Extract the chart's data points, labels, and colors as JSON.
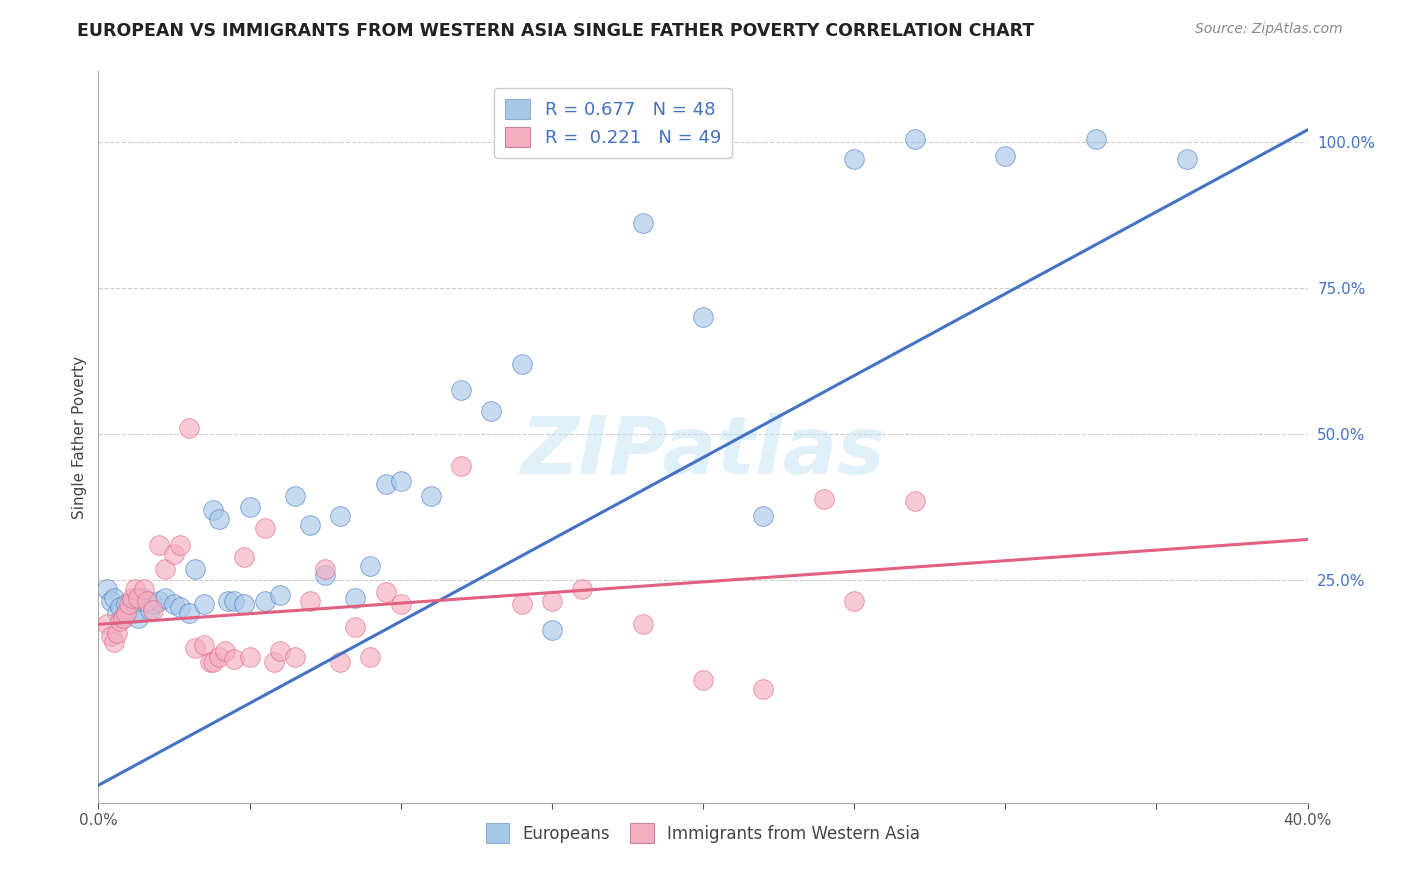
{
  "title": "EUROPEAN VS IMMIGRANTS FROM WESTERN ASIA SINGLE FATHER POVERTY CORRELATION CHART",
  "source": "Source: ZipAtlas.com",
  "ylabel": "Single Father Poverty",
  "right_yticks": [
    "100.0%",
    "75.0%",
    "50.0%",
    "25.0%"
  ],
  "right_ytick_vals": [
    1.0,
    0.75,
    0.5,
    0.25
  ],
  "blue_color": "#a8c8e8",
  "pink_color": "#f4aec0",
  "blue_line_color": "#4472c4",
  "pink_line_color": "#e06080",
  "watermark": "ZIPatlas",
  "xlim": [
    0.0,
    0.4
  ],
  "ylim": [
    -0.13,
    1.12
  ],
  "blue_line_x0": 0.0,
  "blue_line_y0": -0.1,
  "blue_line_x1": 0.4,
  "blue_line_y1": 1.02,
  "pink_line_x0": 0.0,
  "pink_line_y0": 0.175,
  "pink_line_x1": 0.4,
  "pink_line_y1": 0.32,
  "blue_scatter": [
    [
      0.003,
      0.235
    ],
    [
      0.004,
      0.215
    ],
    [
      0.005,
      0.22
    ],
    [
      0.006,
      0.195
    ],
    [
      0.007,
      0.205
    ],
    [
      0.008,
      0.185
    ],
    [
      0.009,
      0.21
    ],
    [
      0.01,
      0.2
    ],
    [
      0.011,
      0.215
    ],
    [
      0.012,
      0.195
    ],
    [
      0.013,
      0.185
    ],
    [
      0.014,
      0.215
    ],
    [
      0.015,
      0.22
    ],
    [
      0.017,
      0.2
    ],
    [
      0.018,
      0.21
    ],
    [
      0.02,
      0.215
    ],
    [
      0.022,
      0.22
    ],
    [
      0.025,
      0.21
    ],
    [
      0.027,
      0.205
    ],
    [
      0.03,
      0.195
    ],
    [
      0.032,
      0.27
    ],
    [
      0.035,
      0.21
    ],
    [
      0.038,
      0.37
    ],
    [
      0.04,
      0.355
    ],
    [
      0.043,
      0.215
    ],
    [
      0.045,
      0.215
    ],
    [
      0.048,
      0.21
    ],
    [
      0.05,
      0.375
    ],
    [
      0.055,
      0.215
    ],
    [
      0.06,
      0.225
    ],
    [
      0.065,
      0.395
    ],
    [
      0.07,
      0.345
    ],
    [
      0.075,
      0.26
    ],
    [
      0.08,
      0.36
    ],
    [
      0.085,
      0.22
    ],
    [
      0.09,
      0.275
    ],
    [
      0.095,
      0.415
    ],
    [
      0.1,
      0.42
    ],
    [
      0.11,
      0.395
    ],
    [
      0.12,
      0.575
    ],
    [
      0.13,
      0.54
    ],
    [
      0.14,
      0.62
    ],
    [
      0.15,
      0.165
    ],
    [
      0.18,
      0.86
    ],
    [
      0.2,
      0.7
    ],
    [
      0.22,
      0.36
    ],
    [
      0.25,
      0.97
    ],
    [
      0.27,
      1.005
    ],
    [
      0.3,
      0.975
    ],
    [
      0.33,
      1.005
    ],
    [
      0.36,
      0.97
    ]
  ],
  "pink_scatter": [
    [
      0.003,
      0.175
    ],
    [
      0.004,
      0.155
    ],
    [
      0.005,
      0.145
    ],
    [
      0.006,
      0.16
    ],
    [
      0.007,
      0.18
    ],
    [
      0.008,
      0.185
    ],
    [
      0.009,
      0.195
    ],
    [
      0.01,
      0.21
    ],
    [
      0.011,
      0.22
    ],
    [
      0.012,
      0.235
    ],
    [
      0.013,
      0.22
    ],
    [
      0.015,
      0.235
    ],
    [
      0.016,
      0.215
    ],
    [
      0.018,
      0.2
    ],
    [
      0.02,
      0.31
    ],
    [
      0.022,
      0.27
    ],
    [
      0.025,
      0.295
    ],
    [
      0.027,
      0.31
    ],
    [
      0.03,
      0.51
    ],
    [
      0.032,
      0.135
    ],
    [
      0.035,
      0.14
    ],
    [
      0.037,
      0.11
    ],
    [
      0.038,
      0.11
    ],
    [
      0.04,
      0.12
    ],
    [
      0.042,
      0.13
    ],
    [
      0.045,
      0.115
    ],
    [
      0.048,
      0.29
    ],
    [
      0.05,
      0.12
    ],
    [
      0.055,
      0.34
    ],
    [
      0.058,
      0.11
    ],
    [
      0.06,
      0.13
    ],
    [
      0.065,
      0.12
    ],
    [
      0.07,
      0.215
    ],
    [
      0.075,
      0.27
    ],
    [
      0.08,
      0.11
    ],
    [
      0.085,
      0.17
    ],
    [
      0.09,
      0.12
    ],
    [
      0.095,
      0.23
    ],
    [
      0.1,
      0.21
    ],
    [
      0.12,
      0.445
    ],
    [
      0.14,
      0.21
    ],
    [
      0.15,
      0.215
    ],
    [
      0.16,
      0.235
    ],
    [
      0.18,
      0.175
    ],
    [
      0.2,
      0.08
    ],
    [
      0.22,
      0.065
    ],
    [
      0.24,
      0.39
    ],
    [
      0.25,
      0.215
    ],
    [
      0.27,
      0.385
    ]
  ]
}
